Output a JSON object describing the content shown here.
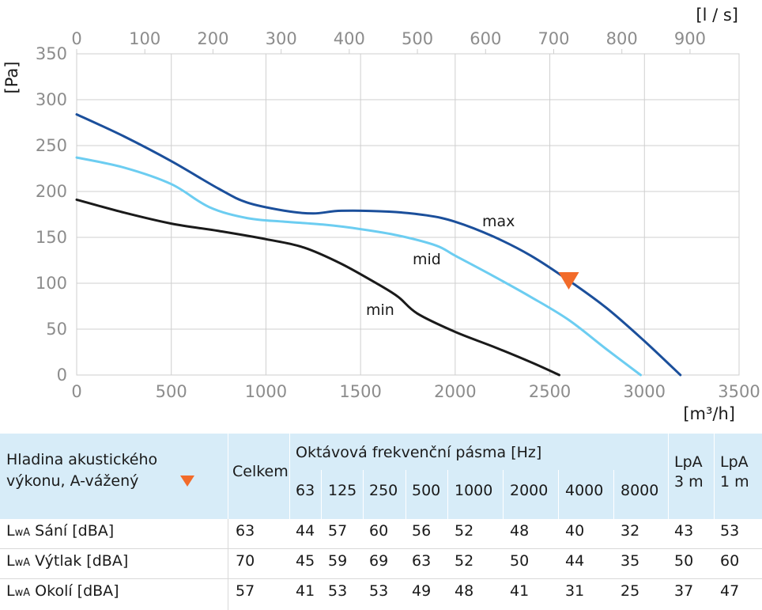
{
  "chart_data": {
    "type": "line",
    "x_unit": "[m³/h]",
    "x2_unit": "[l / s]",
    "y_unit": "[Pa]",
    "xlim": [
      0,
      3500
    ],
    "ylim": [
      0,
      350
    ],
    "x2lim": [
      0,
      972
    ],
    "x_ticks": [
      0,
      500,
      1000,
      1500,
      2000,
      2500,
      3000,
      3500
    ],
    "x2_ticks": [
      0,
      100,
      200,
      300,
      400,
      500,
      600,
      700,
      800,
      900
    ],
    "y_ticks": [
      0,
      50,
      100,
      150,
      200,
      250,
      300,
      350
    ],
    "grid": true,
    "series": [
      {
        "name": "max",
        "color": "#1b4f9b",
        "x": [
          0,
          250,
          500,
          750,
          900,
          1100,
          1250,
          1400,
          1650,
          1850,
          2000,
          2200,
          2400,
          2600,
          2800,
          3000,
          3190
        ],
        "y": [
          284,
          260,
          233,
          203,
          188,
          179,
          176,
          179,
          178,
          174,
          167,
          151,
          130,
          103,
          73,
          37,
          0
        ]
      },
      {
        "name": "mid",
        "color": "#6ccdf1",
        "x": [
          0,
          250,
          500,
          700,
          900,
          1100,
          1300,
          1500,
          1700,
          1900,
          2000,
          2200,
          2400,
          2600,
          2800,
          2980
        ],
        "y": [
          237,
          226,
          208,
          183,
          171,
          167,
          164,
          159,
          152,
          141,
          130,
          108,
          85,
          60,
          28,
          0
        ]
      },
      {
        "name": "min",
        "color": "#1a1a1a",
        "x": [
          0,
          250,
          500,
          750,
          1000,
          1200,
          1400,
          1600,
          1700,
          1800,
          2000,
          2200,
          2400,
          2550
        ],
        "y": [
          191,
          177,
          165,
          157,
          148,
          139,
          121,
          98,
          85,
          67,
          47,
          31,
          14,
          0
        ]
      }
    ],
    "marker": {
      "shape": "down-triangle",
      "color": "#f26b2a",
      "x": 2600,
      "y": 100
    }
  },
  "table": {
    "header_label_line1": "Hladina akustického",
    "header_label_line2": "výkonu, A-vážený",
    "total_label": "Celkem",
    "octave_title": "Oktávová frekvenční pásma [Hz]",
    "bands": [
      "63",
      "125",
      "250",
      "500",
      "1000",
      "2000",
      "4000",
      "8000"
    ],
    "lpa3_line1": "LpA",
    "lpa3_line2": "3 m",
    "lpa1_line1": "LpA",
    "lpa1_line2": "1 m",
    "rows": [
      {
        "prefix": "L",
        "sub": "wA",
        "label": " Sání [dBA]",
        "values": [
          "63",
          "44",
          "57",
          "60",
          "56",
          "52",
          "48",
          "40",
          "32",
          "43",
          "53"
        ]
      },
      {
        "prefix": "L",
        "sub": "wA",
        "label": " Výtlak [dBA]",
        "values": [
          "70",
          "45",
          "59",
          "69",
          "63",
          "52",
          "50",
          "44",
          "35",
          "50",
          "60"
        ]
      },
      {
        "prefix": "L",
        "sub": "wA",
        "label": " Okolí [dBA]",
        "values": [
          "57",
          "41",
          "53",
          "53",
          "49",
          "48",
          "41",
          "31",
          "25",
          "37",
          "47"
        ]
      }
    ]
  }
}
